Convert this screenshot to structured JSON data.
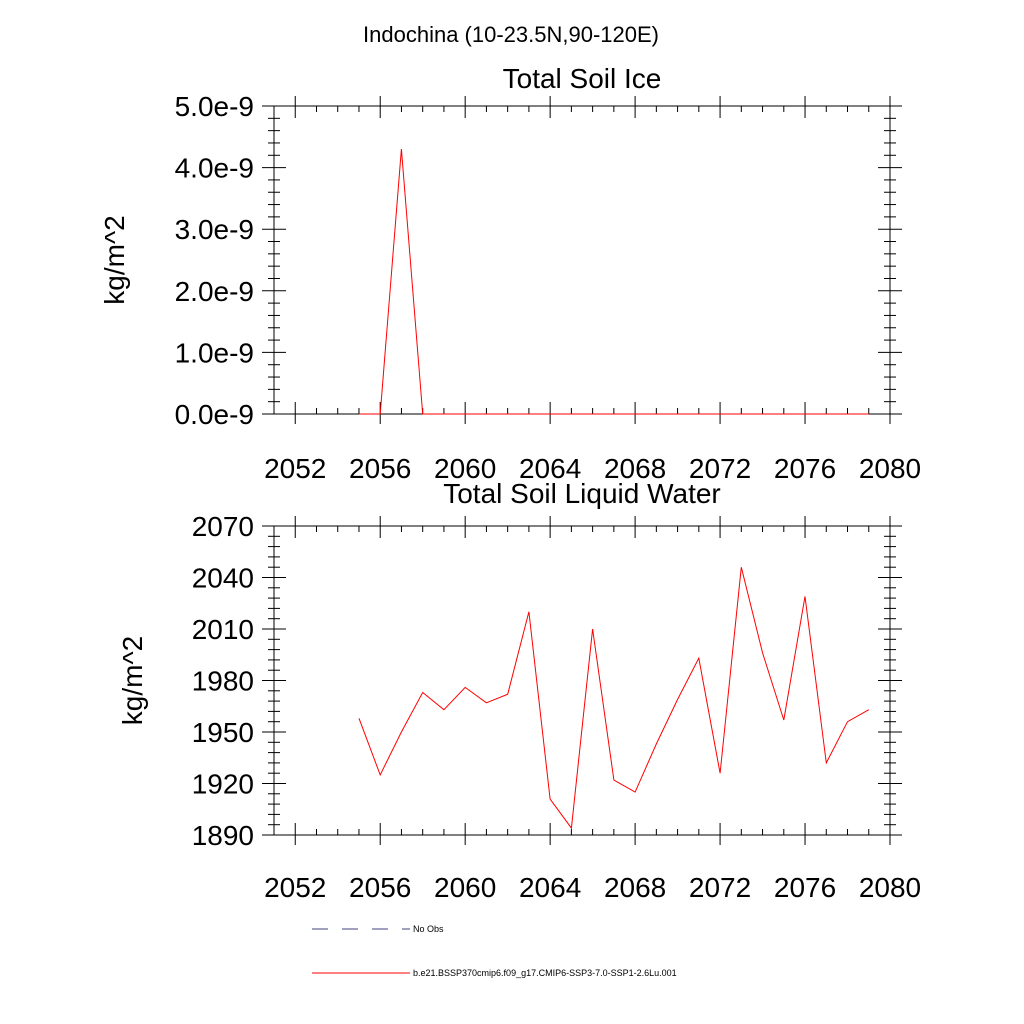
{
  "suptitle": "Indochina (10-23.5N,90-120E)",
  "colors": {
    "model": "#ff0000",
    "obs": "#404080",
    "frame": "#000000"
  },
  "legend": [
    {
      "label": "No Obs",
      "style": "dashed",
      "color": "#404080"
    },
    {
      "label": "b.e21.BSSP370cmip6.f09_g17.CMIP6-SSP3-7.0-SSP1-2.6Lu.001",
      "style": "solid",
      "color": "#ff0000"
    }
  ],
  "chart_data": [
    {
      "type": "line",
      "title": "Total Soil Ice",
      "xlabel": "",
      "ylabel": "kg/m^2",
      "xlim": [
        2051,
        2080
      ],
      "ylim": [
        0,
        5e-09
      ],
      "xticks": [
        2052,
        2056,
        2060,
        2064,
        2068,
        2072,
        2076,
        2080
      ],
      "yticks": [
        0,
        1e-09,
        2e-09,
        3e-09,
        4e-09,
        5e-09
      ],
      "ytick_labels": [
        "0.0e-9",
        "1.0e-9",
        "2.0e-9",
        "3.0e-9",
        "4.0e-9",
        "5.0e-9"
      ],
      "grid": false,
      "series": [
        {
          "color": "#ff0000",
          "x": [
            2055,
            2056,
            2057,
            2058,
            2059,
            2060,
            2061,
            2062,
            2063,
            2064,
            2065,
            2066,
            2067,
            2068,
            2069,
            2070,
            2071,
            2072,
            2073,
            2074,
            2075,
            2076,
            2077,
            2078,
            2079
          ],
          "values": [
            0,
            0,
            4.3e-09,
            0,
            0,
            0,
            0,
            0,
            0,
            0,
            0,
            0,
            0,
            0,
            0,
            0,
            0,
            0,
            0,
            0,
            0,
            0,
            0,
            0,
            0
          ]
        }
      ]
    },
    {
      "type": "line",
      "title": "Total Soil Liquid Water",
      "xlabel": "",
      "ylabel": "kg/m^2",
      "xlim": [
        2051,
        2080
      ],
      "ylim": [
        1890,
        2070
      ],
      "xticks": [
        2052,
        2056,
        2060,
        2064,
        2068,
        2072,
        2076,
        2080
      ],
      "yticks": [
        1890,
        1920,
        1950,
        1980,
        2010,
        2040,
        2070
      ],
      "ytick_labels": [
        "1890",
        "1920",
        "1950",
        "1980",
        "2010",
        "2040",
        "2070"
      ],
      "grid": false,
      "series": [
        {
          "color": "#ff0000",
          "x": [
            2055,
            2056,
            2057,
            2058,
            2059,
            2060,
            2061,
            2062,
            2063,
            2064,
            2065,
            2066,
            2067,
            2068,
            2069,
            2070,
            2071,
            2072,
            2073,
            2074,
            2075,
            2076,
            2077,
            2078,
            2079
          ],
          "values": [
            1958,
            1925,
            1950,
            1973,
            1963,
            1976,
            1967,
            1972,
            2020,
            1911,
            1894,
            2010,
            1922,
            1915,
            1943,
            1969,
            1993,
            1926,
            2046,
            1996,
            1957,
            2029,
            1932,
            1956,
            1963
          ]
        }
      ]
    }
  ]
}
